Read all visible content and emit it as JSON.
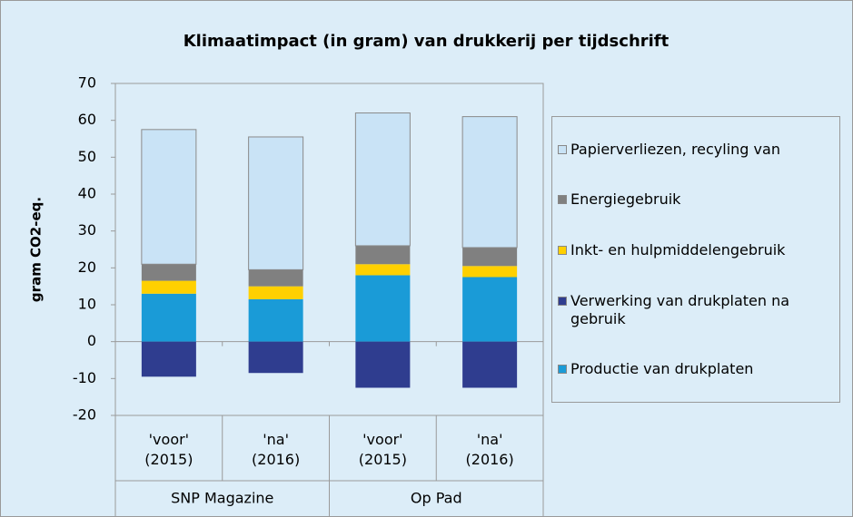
{
  "chart_data": {
    "type": "stacked_bar",
    "title": "Klimaatimpact (in gram) van drukkerij per tijdschrift",
    "y_label": "gram CO2-eq.",
    "categories": [
      "'voor' (2015)",
      "'na' (2016)",
      "'voor' (2015)",
      "'na' (2016)"
    ],
    "groups": [
      "SNP Magazine",
      "Op Pad"
    ],
    "series": [
      {
        "name": "Productie van drukplaten",
        "color": "#1a9bd7",
        "values": [
          13,
          11.5,
          18,
          17.5
        ]
      },
      {
        "name": "Verwerking van drukplaten na gebruik",
        "color": "#2f3d8f",
        "values": [
          -9.5,
          -8.5,
          -12.5,
          -12.5
        ]
      },
      {
        "name": "Inkt- en hulpmiddelengebruik",
        "color": "#ffd000",
        "values": [
          3.5,
          3.5,
          3,
          3
        ]
      },
      {
        "name": "Energiegebruik",
        "color": "#808080",
        "values": [
          4.5,
          4.5,
          5,
          5
        ]
      },
      {
        "name": "Papierverliezen, recyling van",
        "color": "#c9e3f6",
        "values": [
          36.5,
          36,
          36,
          35.5
        ]
      }
    ],
    "ylim": [
      -20,
      70
    ],
    "yticks": [
      -20,
      -10,
      0,
      10,
      20,
      30,
      40,
      50,
      60,
      70
    ],
    "grid": false
  }
}
